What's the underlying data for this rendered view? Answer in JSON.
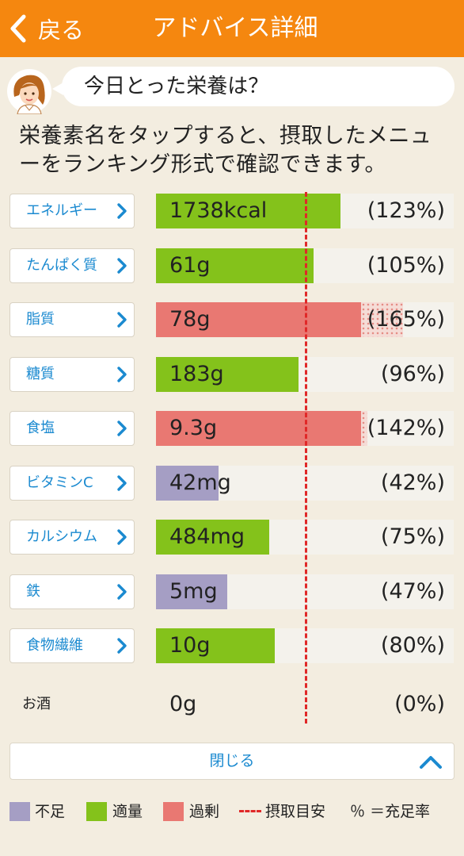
{
  "header": {
    "back_label": "戻る",
    "title": "アドバイス詳細"
  },
  "bubble": {
    "text": "今日とった栄養は？"
  },
  "description": "栄養素名をタップすると、摂取したメニューをランキング形式で確認できます。",
  "nutrients": [
    {
      "name": "エネルギー",
      "amount": "1738kcal",
      "percent": "(123%)",
      "status": "adequate",
      "fill": 0.62,
      "overflow": 0
    },
    {
      "name": "たんぱく質",
      "amount": "61g",
      "percent": "(105%)",
      "status": "adequate",
      "fill": 0.53,
      "overflow": 0
    },
    {
      "name": "脂質",
      "amount": "78g",
      "percent": "(165%)",
      "status": "excess",
      "fill": 0.69,
      "overflow": 0.83
    },
    {
      "name": "糖質",
      "amount": "183g",
      "percent": "(96%)",
      "status": "adequate",
      "fill": 0.48,
      "overflow": 0
    },
    {
      "name": "食塩",
      "amount": "9.3g",
      "percent": "(142%)",
      "status": "excess",
      "fill": 0.69,
      "overflow": 0.71
    },
    {
      "name": "ビタミンC",
      "amount": "42mg",
      "percent": "(42%)",
      "status": "deficient",
      "fill": 0.21,
      "overflow": 0
    },
    {
      "name": "カルシウム",
      "amount": "484mg",
      "percent": "(75%)",
      "status": "adequate",
      "fill": 0.38,
      "overflow": 0
    },
    {
      "name": "鉄",
      "amount": "5mg",
      "percent": "(47%)",
      "status": "deficient",
      "fill": 0.24,
      "overflow": 0
    },
    {
      "name": "食物繊維",
      "amount": "10g",
      "percent": "(80%)",
      "status": "adequate",
      "fill": 0.4,
      "overflow": 0
    }
  ],
  "alcohol": {
    "name": "お酒",
    "amount": "0g",
    "percent": "(0%)"
  },
  "close_button": {
    "label": "閉じる"
  },
  "legend": {
    "deficient": "不足",
    "adequate": "適量",
    "excess": "過剰",
    "target": "摂取目安",
    "percent_note": "％ ＝充足率"
  },
  "colors": {
    "header": "#f5870f",
    "adequate": "#84c21b",
    "excess": "#e97872",
    "deficient": "#a59ec4",
    "target_line": "#e02828",
    "link": "#1b8ad0"
  }
}
